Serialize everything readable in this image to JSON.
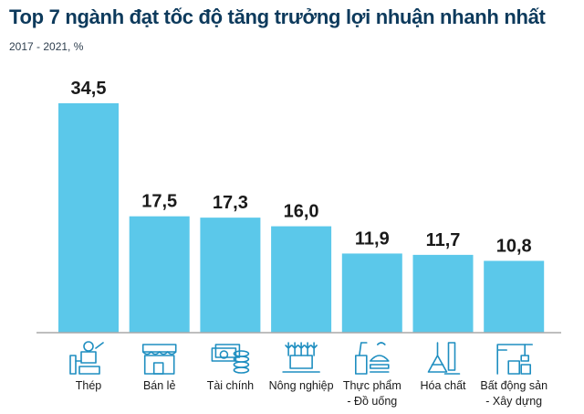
{
  "chart_data": {
    "type": "bar",
    "title": "Top 7 ngành đạt tốc độ tăng trưởng lợi nhuận nhanh nhất",
    "subtitle": "2017 - 2021, %",
    "categories": [
      "Thép",
      "Bán lẻ",
      "Tài chính",
      "Nông nghiệp",
      "Thực phẩm - Đồ uống",
      "Hóa chất",
      "Bất động sản - Xây dựng"
    ],
    "category_lines": [
      [
        "Thép"
      ],
      [
        "Bán lẻ"
      ],
      [
        "Tài chính"
      ],
      [
        "Nông nghiệp"
      ],
      [
        "Thực phẩm",
        "- Đồ uống"
      ],
      [
        "Hóa chất"
      ],
      [
        "Bất động sản",
        "- Xây dựng"
      ]
    ],
    "values": [
      34.5,
      17.5,
      17.3,
      16.0,
      11.9,
      11.7,
      10.8
    ],
    "value_labels": [
      "34,5",
      "17,5",
      "17,3",
      "16,0",
      "11,9",
      "11,7",
      "10,8"
    ],
    "icons": [
      "steel-worker-icon",
      "storefront-icon",
      "money-coins-icon",
      "farm-crops-icon",
      "food-drink-icon",
      "chemistry-flask-icon",
      "construction-crane-icon"
    ],
    "ylim": [
      0,
      34.5
    ],
    "grid": false,
    "colors": {
      "bar": "#5bc8ea",
      "baseline": "#a9a9a9",
      "title": "#0d3a5c",
      "icon": "#1e8ec0"
    }
  }
}
